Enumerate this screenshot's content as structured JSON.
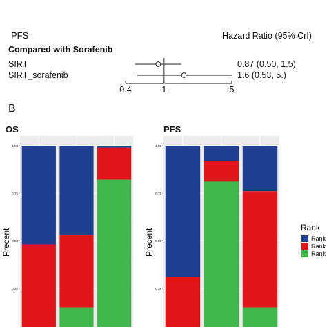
{
  "forest": {
    "header_left": "PFS",
    "header_right": "Hazard Ratio (95% CrI)",
    "group_label": "Compared with Sorafenib",
    "rows": [
      {
        "label": "SIRT",
        "hr": 0.87,
        "lo": 0.5,
        "hi": 1.5,
        "text": "0.87 (0.50, 1.5)"
      },
      {
        "label": "SIRT_sorafenib",
        "hr": 1.6,
        "lo": 0.53,
        "hi": 5.0,
        "text": "1.6 (0.53,  5.)"
      }
    ],
    "ticks": [
      {
        "value": 0.4,
        "label": "0.4"
      },
      {
        "value": 1,
        "label": "1"
      },
      {
        "value": 5,
        "label": "5"
      }
    ],
    "ref_value": 1
  },
  "panel_b_label": "B",
  "chart_data": [
    {
      "type": "bar",
      "stacked": true,
      "title": "OS",
      "ylabel": "Precent",
      "ylim": [
        0,
        1
      ],
      "yticks": [
        "0.25",
        "0.50",
        "0.75",
        "1.00"
      ],
      "series": [
        {
          "name": "Rank 1",
          "values": [
            0.52,
            0.47,
            0.01
          ]
        },
        {
          "name": "Rank 2",
          "values": [
            0.48,
            0.38,
            0.17
          ]
        },
        {
          "name": "Rank 3",
          "values": [
            0.0,
            0.15,
            0.82
          ]
        }
      ]
    },
    {
      "type": "bar",
      "stacked": true,
      "title": "PFS",
      "ylabel": "Precent",
      "ylim": [
        0,
        1
      ],
      "yticks": [
        "0.25",
        "0.50",
        "0.75",
        "1.00"
      ],
      "series": [
        {
          "name": "Rank 1",
          "values": [
            0.69,
            0.08,
            0.24
          ]
        },
        {
          "name": "Rank 2",
          "values": [
            0.31,
            0.11,
            0.61
          ]
        },
        {
          "name": "Rank 3",
          "values": [
            0.0,
            0.81,
            0.15
          ]
        }
      ]
    }
  ],
  "legend": {
    "title": "Rank",
    "items": [
      {
        "label": "Rank 1",
        "color": "#1f3f8f"
      },
      {
        "label": "Rank 2",
        "color": "#e0161b"
      },
      {
        "label": "Rank 3",
        "color": "#3fb54a"
      }
    ]
  }
}
